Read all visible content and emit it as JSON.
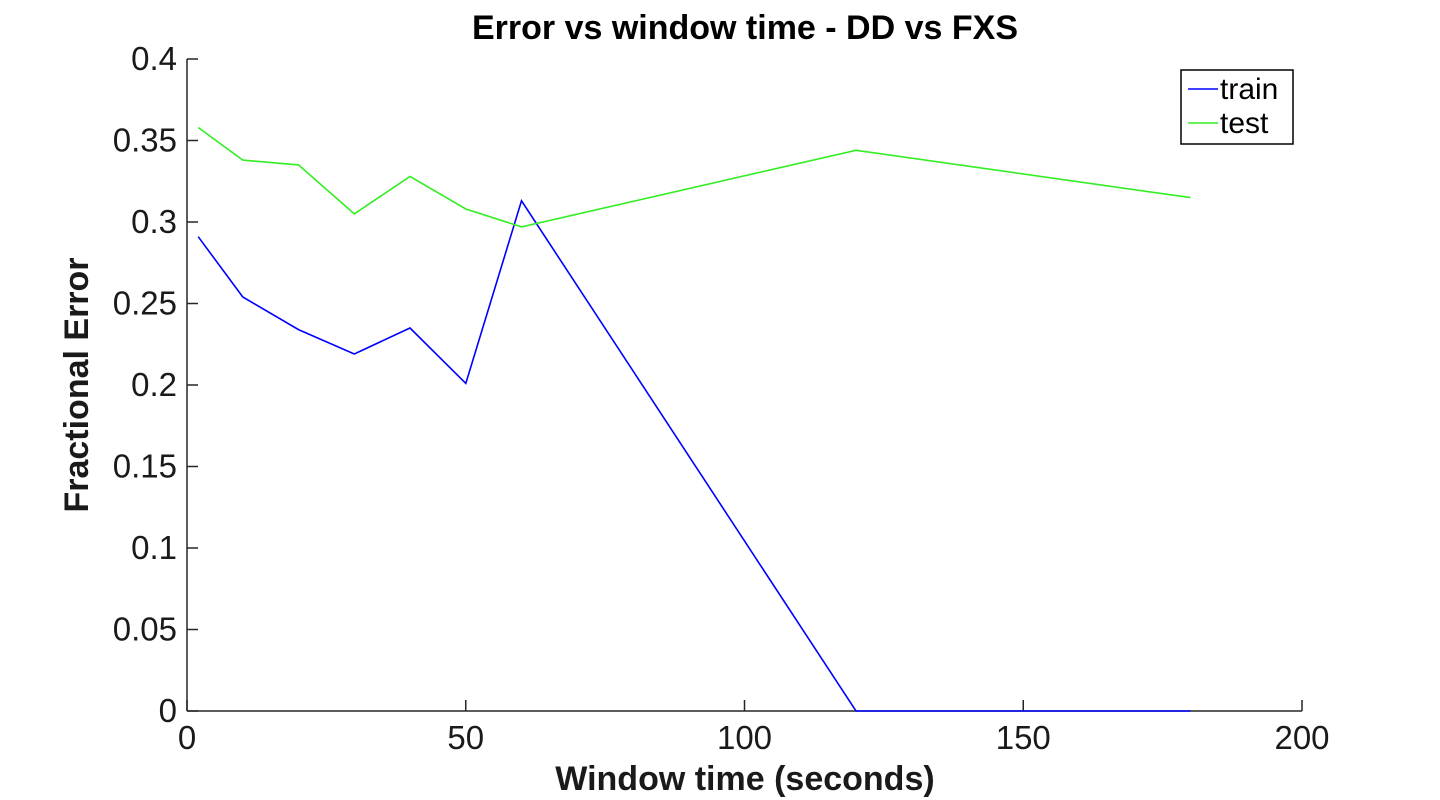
{
  "chart_data": {
    "type": "line",
    "title": "Error vs window time - DD vs FXS",
    "xlabel": "Window time (seconds)",
    "ylabel": "Fractional Error",
    "xlim": [
      0,
      200
    ],
    "ylim": [
      0,
      0.4
    ],
    "xticks": [
      0,
      50,
      100,
      150,
      200
    ],
    "xtick_labels": [
      "0",
      "50",
      "100",
      "150",
      "200"
    ],
    "yticks": [
      0,
      0.05,
      0.1,
      0.15,
      0.2,
      0.25,
      0.3,
      0.35,
      0.4
    ],
    "ytick_labels": [
      "0",
      "0.05",
      "0.1",
      "0.15",
      "0.2",
      "0.25",
      "0.3",
      "0.35",
      "0.4"
    ],
    "grid": false,
    "legend_position": "top-right",
    "series": [
      {
        "name": "train",
        "color": "#0000ff",
        "x": [
          2,
          10,
          20,
          30,
          40,
          50,
          60,
          120,
          180
        ],
        "y": [
          0.291,
          0.254,
          0.234,
          0.219,
          0.235,
          0.201,
          0.313,
          0.0,
          0.0
        ]
      },
      {
        "name": "test",
        "color": "#33ee22",
        "x": [
          2,
          10,
          20,
          30,
          40,
          50,
          60,
          120,
          180
        ],
        "y": [
          0.358,
          0.338,
          0.335,
          0.305,
          0.328,
          0.308,
          0.297,
          0.344,
          0.315
        ]
      }
    ]
  }
}
